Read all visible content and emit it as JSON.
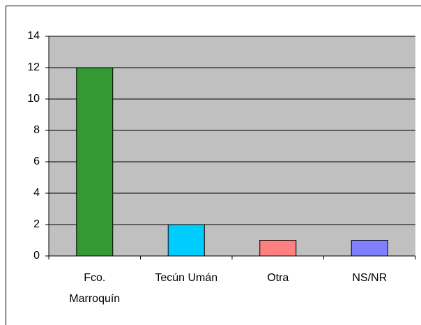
{
  "chart_data": {
    "type": "bar",
    "categories": [
      "Fco. Marroquín",
      "Tecún Umán",
      "Otra",
      "NS/NR"
    ],
    "values": [
      12,
      2,
      1,
      1
    ],
    "colors": [
      "#339933",
      "#00ccff",
      "#ff8080",
      "#8080ff"
    ],
    "ylim": [
      0,
      14
    ],
    "yticks": [
      0,
      2,
      4,
      6,
      8,
      10,
      12,
      14
    ],
    "grid": true
  }
}
